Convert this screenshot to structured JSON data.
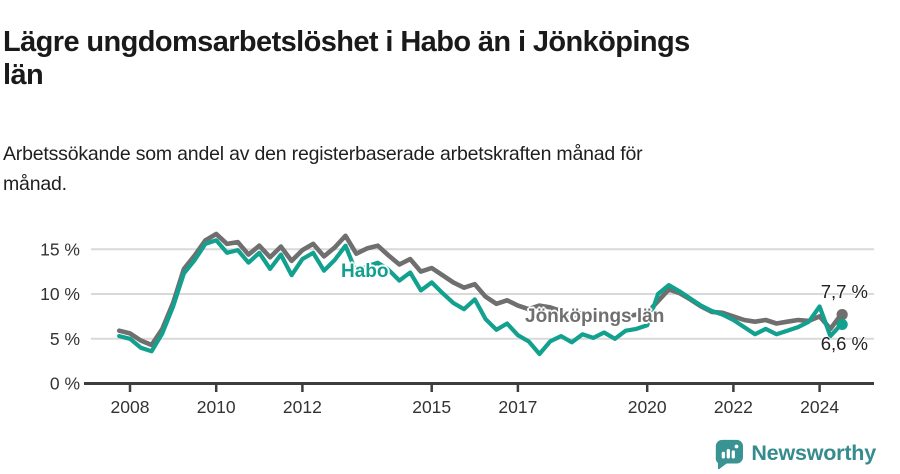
{
  "header": {
    "title_lines": [
      "Lägre ungdomsarbetslöshet i Habo än i Jönköpings",
      "län"
    ],
    "subtitle_lines": [
      "Arbetssökande som andel av den registerbaserade arbetskraften månad för",
      "månad."
    ]
  },
  "annotations": {
    "habo_label": "Habo",
    "lan_label": "Jönköpings län",
    "top_end_label": "7,7 %",
    "bottom_end_label": "6,6 %"
  },
  "footer": {
    "brand": "Newsworthy"
  },
  "colors": {
    "habo_line": "#12a08f",
    "lan_line": "#6f6f6f",
    "gridline": "#d9d9d9",
    "axis": "#3d3d3d",
    "tick_text": "#333333",
    "brand_teal": "#368b8c"
  },
  "chart_data": {
    "type": "line",
    "title": "Lägre ungdomsarbetslöshet i Habo än i Jönköpings län",
    "subtitle": "Arbetssökande som andel av den registerbaserade arbetskraften månad för månad.",
    "unit": "%",
    "grid": "horizontal",
    "legend_position": "inline-labels",
    "xlim": [
      2007.6,
      2025.1
    ],
    "ylim": [
      0,
      17.5
    ],
    "xticks": {
      "years": [
        2008,
        2010,
        2012,
        2015,
        2017,
        2020,
        2022,
        2024
      ]
    },
    "yticks": {
      "values": [
        0,
        5,
        10,
        15
      ],
      "labels": [
        "0 %",
        "5 %",
        "10 %",
        "15 %"
      ]
    },
    "x": [
      2007.75,
      2008,
      2008.25,
      2008.5,
      2008.75,
      2009,
      2009.25,
      2009.5,
      2009.75,
      2010,
      2010.25,
      2010.5,
      2010.75,
      2011,
      2011.25,
      2011.5,
      2011.75,
      2012,
      2012.25,
      2012.5,
      2012.75,
      2013,
      2013.25,
      2013.5,
      2013.75,
      2014,
      2014.25,
      2014.5,
      2014.75,
      2015,
      2015.25,
      2015.5,
      2015.75,
      2016,
      2016.25,
      2016.5,
      2016.75,
      2017,
      2017.25,
      2017.5,
      2017.75,
      2018,
      2018.25,
      2018.5,
      2018.75,
      2019,
      2019.25,
      2019.5,
      2019.75,
      2020,
      2020.25,
      2020.5,
      2020.75,
      2021,
      2021.25,
      2021.5,
      2021.75,
      2022,
      2022.25,
      2022.5,
      2022.75,
      2023,
      2023.25,
      2023.5,
      2023.75,
      2024,
      2024.25,
      2024.5
    ],
    "series": [
      {
        "name": "Jönköpings län",
        "color": "#6f6f6f",
        "stroke_width": 4.6,
        "end_label": "7,7 %",
        "end_value": 7.7,
        "values": [
          5.9,
          5.6,
          4.8,
          4.3,
          6.1,
          9.0,
          12.8,
          14.3,
          16.0,
          16.7,
          15.6,
          15.8,
          14.4,
          15.4,
          14.1,
          15.3,
          13.7,
          14.9,
          15.6,
          14.2,
          15.2,
          16.5,
          14.5,
          15.1,
          15.4,
          14.3,
          13.3,
          13.9,
          12.5,
          12.9,
          12.1,
          11.3,
          10.7,
          11.1,
          9.7,
          8.9,
          9.3,
          8.7,
          8.3,
          8.7,
          8.5,
          8.1,
          7.5,
          7.9,
          7.4,
          7.5,
          7.1,
          7.5,
          7.7,
          7.9,
          9.2,
          10.5,
          10.1,
          9.4,
          8.6,
          8.0,
          7.9,
          7.5,
          7.1,
          6.9,
          7.1,
          6.7,
          6.9,
          7.1,
          7.0,
          7.5,
          6.1,
          7.7
        ]
      },
      {
        "name": "Habo",
        "color": "#12a08f",
        "stroke_width": 4.2,
        "end_label": "6,6 %",
        "end_value": 6.6,
        "values": [
          5.3,
          5.0,
          4.0,
          3.6,
          5.6,
          8.6,
          12.3,
          13.8,
          15.6,
          16.0,
          14.6,
          14.9,
          13.5,
          14.6,
          12.8,
          14.4,
          12.1,
          13.9,
          14.6,
          12.6,
          13.8,
          15.4,
          12.4,
          13.1,
          13.5,
          12.7,
          11.5,
          12.4,
          10.4,
          11.3,
          10.1,
          9.0,
          8.3,
          9.4,
          7.2,
          6.0,
          6.7,
          5.4,
          4.7,
          3.3,
          4.7,
          5.3,
          4.6,
          5.5,
          5.1,
          5.7,
          5.0,
          5.9,
          6.1,
          6.5,
          10.0,
          11.0,
          10.3,
          9.5,
          8.7,
          8.1,
          7.7,
          7.1,
          6.3,
          5.5,
          6.1,
          5.5,
          5.9,
          6.3,
          6.9,
          8.6,
          5.3,
          6.6
        ]
      }
    ]
  }
}
